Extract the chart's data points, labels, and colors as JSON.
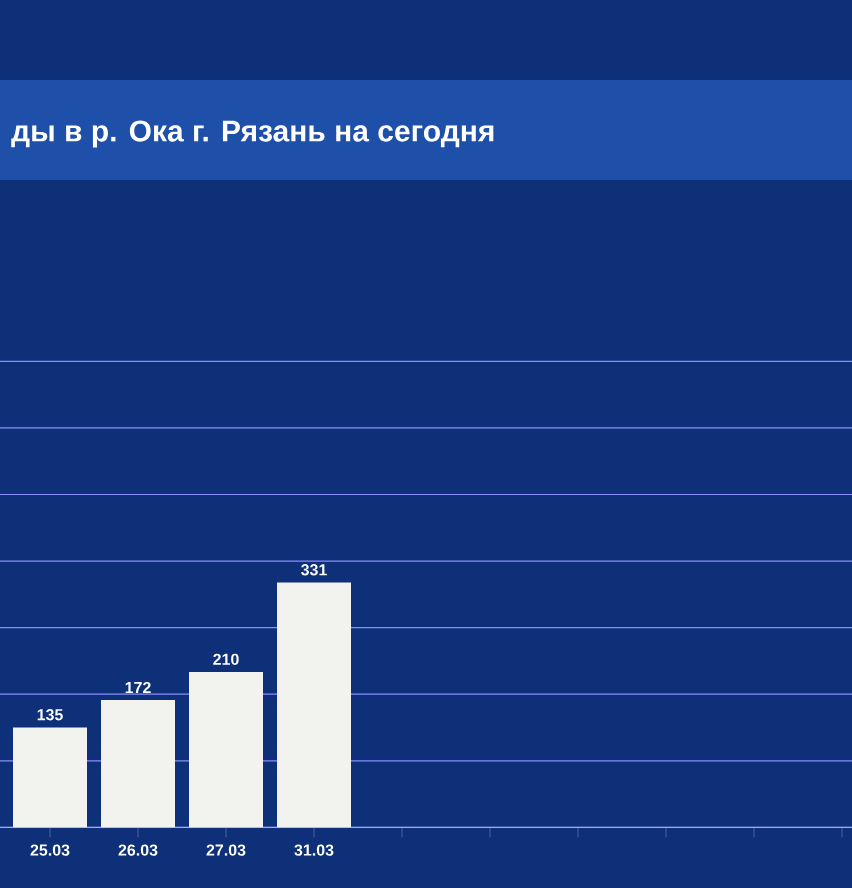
{
  "chart_data": {
    "type": "bar",
    "title": "ды в р. Ока г. Рязань на сегодня",
    "categories": [
      "25.03",
      "26.03",
      "27.03",
      "31.03",
      null,
      null,
      null,
      null,
      null,
      null
    ],
    "values": [
      135,
      172,
      210,
      331,
      null,
      null,
      null,
      null,
      null,
      null
    ],
    "color": "#f2f2ef",
    "data_labels": true,
    "grid": "y",
    "tick_labels": "x",
    "ylim": [
      0,
      630
    ],
    "yticks": [
      {
        "value": 0,
        "label": null
      },
      {
        "value": 90,
        "label": null
      },
      {
        "value": 180,
        "label": null
      },
      {
        "value": 270,
        "label": null
      },
      {
        "value": 360,
        "label": null
      },
      {
        "value": 450,
        "label": null
      },
      {
        "value": 540,
        "label": null
      },
      {
        "value": 630,
        "label": null
      }
    ]
  }
}
